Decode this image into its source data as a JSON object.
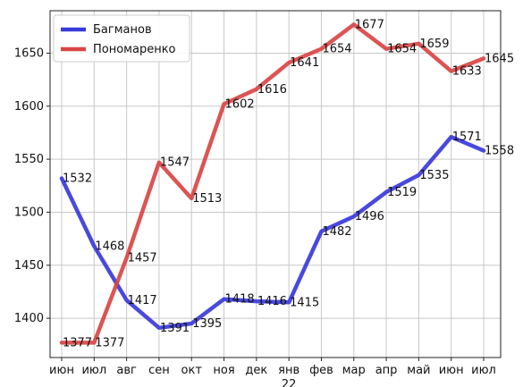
{
  "chart_data": {
    "type": "line",
    "categories": [
      "июн",
      "июл",
      "авг",
      "сен",
      "окт",
      "ноя",
      "дек",
      "янв",
      "фев",
      "мар",
      "апр",
      "май",
      "июн",
      "июл"
    ],
    "series": [
      {
        "name": "Багманов",
        "color": "#3a3adb",
        "values": [
          1532,
          1468,
          1417,
          1391,
          1395,
          1418,
          1416,
          1415,
          1482,
          1496,
          1519,
          1535,
          1571,
          1558
        ],
        "labels": [
          "1532",
          "1468",
          "1417",
          "1391",
          "1395",
          "1418",
          "1416",
          "1415",
          "1482",
          "1496",
          "1519",
          "1535",
          "1571",
          "1558"
        ]
      },
      {
        "name": "Пономаренко",
        "color": "#d94545",
        "values": [
          1377,
          1377,
          1457,
          1547,
          1513,
          1602,
          1616,
          1641,
          1654,
          1677,
          1654,
          1659,
          1633,
          1645
        ],
        "labels": [
          "1377",
          "1377",
          "1457",
          "1547",
          "1513",
          "1602",
          "1616",
          "1641",
          "1654",
          "1677",
          "1654",
          "1659",
          "1633",
          "1645"
        ]
      }
    ],
    "yticks": [
      1400,
      1450,
      1500,
      1550,
      1600,
      1650
    ],
    "ytick_labels": [
      "1400",
      "1450",
      "1500",
      "1550",
      "1600",
      "1650"
    ],
    "ylim": [
      1363,
      1690
    ],
    "xlabel_partial": "22",
    "grid": true,
    "legend_position": "top-left"
  }
}
